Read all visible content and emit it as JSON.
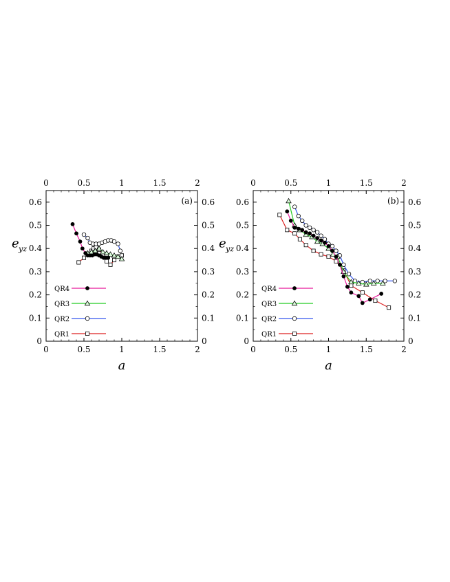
{
  "chart_data": [
    {
      "type": "line",
      "panel_label": "(a)",
      "xlabel": "a",
      "ylabel": "e",
      "ylabel_sub": "yz",
      "xlim": [
        0,
        2
      ],
      "ylim": [
        0,
        0.65
      ],
      "xticks": [
        "0",
        "0.5",
        "1",
        "1.5",
        "2"
      ],
      "yticks": [
        "0",
        "0.1",
        "0.2",
        "0.3",
        "0.4",
        "0.5",
        "0.6"
      ],
      "grid": false,
      "legend_position": "bottom-left",
      "series": [
        {
          "name": "QR4",
          "color": "#e6199a",
          "marker": "filled-circle",
          "x": [
            0.35,
            0.4,
            0.45,
            0.48,
            0.52,
            0.55,
            0.58,
            0.61,
            0.64,
            0.67,
            0.7,
            0.73,
            0.76,
            0.79,
            0.82
          ],
          "y": [
            0.505,
            0.465,
            0.43,
            0.4,
            0.38,
            0.37,
            0.37,
            0.37,
            0.375,
            0.375,
            0.37,
            0.365,
            0.36,
            0.36,
            0.36
          ]
        },
        {
          "name": "QR3",
          "color": "#22cc22",
          "marker": "open-triangle",
          "x": [
            0.55,
            0.6,
            0.65,
            0.7,
            0.75,
            0.8,
            0.85,
            0.9,
            0.95,
            1.0
          ],
          "y": [
            0.38,
            0.385,
            0.39,
            0.4,
            0.385,
            0.38,
            0.375,
            0.37,
            0.365,
            0.355
          ]
        },
        {
          "name": "QR2",
          "color": "#3355ee",
          "marker": "open-circle",
          "x": [
            0.5,
            0.55,
            0.58,
            0.62,
            0.66,
            0.7,
            0.74,
            0.78,
            0.82,
            0.86,
            0.9,
            0.95,
            0.98
          ],
          "y": [
            0.46,
            0.445,
            0.425,
            0.42,
            0.42,
            0.42,
            0.425,
            0.43,
            0.435,
            0.435,
            0.43,
            0.42,
            0.39
          ]
        },
        {
          "name": "QR1",
          "color": "#dd2222",
          "marker": "open-square",
          "x": [
            0.43,
            0.5,
            0.55,
            0.6,
            0.63,
            0.66,
            0.7,
            0.75,
            0.8,
            0.85,
            0.9,
            0.95,
            1.0
          ],
          "y": [
            0.34,
            0.36,
            0.375,
            0.39,
            0.4,
            0.405,
            0.395,
            0.375,
            0.345,
            0.33,
            0.35,
            0.365,
            0.37
          ]
        }
      ]
    },
    {
      "type": "line",
      "panel_label": "(b)",
      "xlabel": "a",
      "ylabel": "e",
      "ylabel_sub": "yz",
      "xlim": [
        0,
        2
      ],
      "ylim": [
        0,
        0.65
      ],
      "xticks": [
        "0",
        "0.5",
        "1",
        "1.5",
        "2"
      ],
      "yticks": [
        "0",
        "0.1",
        "0.2",
        "0.3",
        "0.4",
        "0.5",
        "0.6"
      ],
      "grid": false,
      "legend_position": "bottom-left",
      "series": [
        {
          "name": "QR4",
          "color": "#e6199a",
          "marker": "filled-circle",
          "x": [
            0.45,
            0.5,
            0.55,
            0.6,
            0.65,
            0.7,
            0.75,
            0.8,
            0.85,
            0.9,
            0.95,
            1.0,
            1.05,
            1.1,
            1.15,
            1.2,
            1.25,
            1.3,
            1.4,
            1.45,
            1.55,
            1.7
          ],
          "y": [
            0.56,
            0.52,
            0.49,
            0.485,
            0.48,
            0.47,
            0.465,
            0.455,
            0.445,
            0.435,
            0.425,
            0.41,
            0.39,
            0.365,
            0.33,
            0.28,
            0.235,
            0.21,
            0.195,
            0.165,
            0.18,
            0.205
          ]
        },
        {
          "name": "QR3",
          "color": "#22cc22",
          "marker": "open-triangle",
          "x": [
            0.47,
            0.55,
            0.62,
            0.7,
            0.78,
            0.85,
            0.92,
            1.0,
            1.06,
            1.12,
            1.2,
            1.3,
            1.4,
            1.5,
            1.6,
            1.72
          ],
          "y": [
            0.605,
            0.5,
            0.48,
            0.46,
            0.45,
            0.43,
            0.42,
            0.4,
            0.375,
            0.365,
            0.3,
            0.255,
            0.25,
            0.245,
            0.25,
            0.25
          ]
        },
        {
          "name": "QR2",
          "color": "#3355ee",
          "marker": "open-circle",
          "x": [
            0.55,
            0.6,
            0.65,
            0.7,
            0.75,
            0.8,
            0.85,
            0.9,
            0.95,
            1.0,
            1.05,
            1.1,
            1.15,
            1.2,
            1.27,
            1.35,
            1.45,
            1.55,
            1.65,
            1.75,
            1.88
          ],
          "y": [
            0.58,
            0.54,
            0.52,
            0.5,
            0.49,
            0.48,
            0.47,
            0.455,
            0.44,
            0.42,
            0.41,
            0.39,
            0.37,
            0.33,
            0.29,
            0.26,
            0.255,
            0.26,
            0.26,
            0.26,
            0.26
          ]
        },
        {
          "name": "QR1",
          "color": "#dd2222",
          "marker": "open-square",
          "x": [
            0.35,
            0.45,
            0.55,
            0.62,
            0.7,
            0.8,
            0.9,
            1.0,
            1.1,
            1.2,
            1.3,
            1.45,
            1.62,
            1.8
          ],
          "y": [
            0.545,
            0.48,
            0.465,
            0.44,
            0.415,
            0.39,
            0.375,
            0.365,
            0.345,
            0.305,
            0.24,
            0.21,
            0.175,
            0.145
          ]
        }
      ]
    }
  ]
}
